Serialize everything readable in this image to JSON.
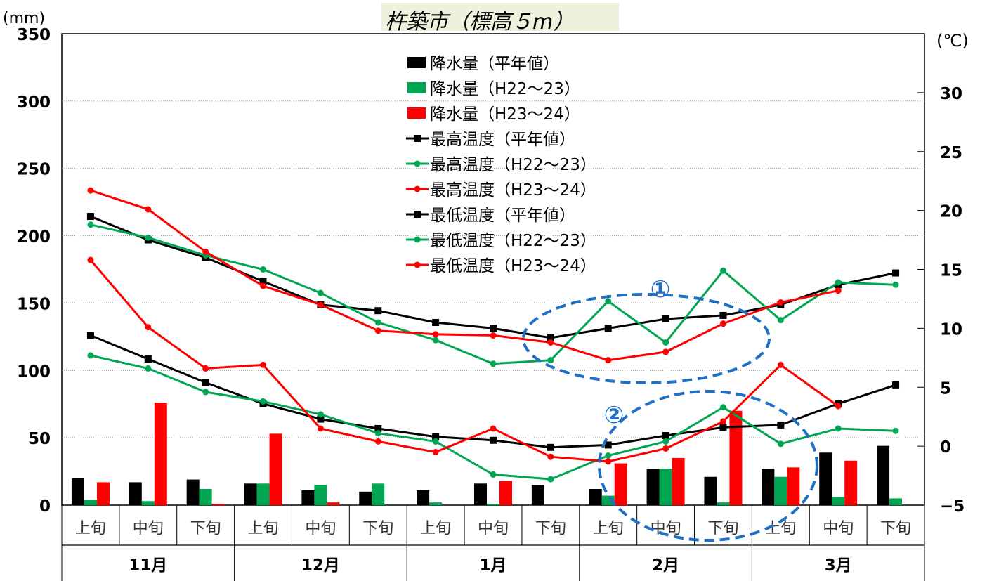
{
  "chart_data": {
    "type": "bar+line",
    "title": "杵築市（標高５m）",
    "y_left_unit": "(mm)",
    "y_right_unit": "(℃)",
    "ylim_left": [
      0,
      350
    ],
    "ylim_right": [
      -5,
      35
    ],
    "yticks_left": [
      "0",
      "50",
      "100",
      "150",
      "200",
      "250",
      "300",
      "350"
    ],
    "yticks_right": [
      "−5",
      "0",
      "5",
      "10",
      "15",
      "20",
      "25",
      "30"
    ],
    "yticks_right_values": [
      -5,
      0,
      5,
      10,
      15,
      20,
      25,
      30
    ],
    "categories": [
      "上旬",
      "中旬",
      "下旬",
      "上旬",
      "中旬",
      "下旬",
      "上旬",
      "中旬",
      "下旬",
      "上旬",
      "中旬",
      "下旬",
      "上旬",
      "中旬",
      "下旬"
    ],
    "months": [
      "11月",
      "12月",
      "1月",
      "2月",
      "3月"
    ],
    "bar_series": [
      {
        "name": "降水量（平年値）",
        "color": "#000000",
        "values": [
          20,
          17,
          19,
          16,
          11,
          10,
          11,
          16,
          15,
          12,
          27,
          21,
          27,
          39,
          44
        ]
      },
      {
        "name": "降水量（H22～23）",
        "color": "#00a651",
        "values": [
          4,
          3,
          12,
          16,
          15,
          16,
          2,
          1,
          0,
          7,
          27,
          2,
          21,
          6,
          5
        ]
      },
      {
        "name": "降水量（H23～24）",
        "color": "#ff0000",
        "values": [
          17,
          76,
          1,
          53,
          2,
          0,
          0,
          18,
          0,
          31,
          35,
          70,
          28,
          33,
          0
        ]
      }
    ],
    "line_series": [
      {
        "name": "最高温度（平年値）",
        "color": "#000000",
        "values": [
          19.5,
          17.5,
          16.0,
          14.0,
          12.0,
          11.5,
          10.5,
          10.0,
          9.2,
          10.0,
          10.8,
          11.1,
          12.0,
          13.7,
          14.7
        ]
      },
      {
        "name": "最高温度（H22～23）",
        "color": "#00a651",
        "values": [
          18.8,
          17.7,
          16.2,
          15.0,
          13.0,
          10.5,
          9.0,
          7.0,
          7.3,
          12.3,
          8.8,
          14.9,
          10.7,
          13.9,
          13.7
        ]
      },
      {
        "name": "最高温度（H23～24）",
        "color": "#ff0000",
        "values": [
          21.7,
          20.1,
          16.5,
          13.6,
          12.0,
          9.8,
          9.5,
          9.4,
          8.8,
          7.3,
          8.0,
          10.4,
          12.2,
          13.2,
          null
        ]
      },
      {
        "name": "最低温度（平年値）",
        "color": "#000000",
        "values": [
          9.4,
          7.4,
          5.4,
          3.6,
          2.3,
          1.5,
          0.8,
          0.5,
          -0.1,
          0.1,
          0.9,
          1.6,
          1.8,
          3.6,
          5.2
        ]
      },
      {
        "name": "最低温度（H22～23）",
        "color": "#00a651",
        "values": [
          7.7,
          6.6,
          4.6,
          3.8,
          2.7,
          1.1,
          0.4,
          -2.4,
          -2.8,
          -0.8,
          0.4,
          3.3,
          0.2,
          1.5,
          1.3
        ]
      },
      {
        "name": "最低温度（H23～24）",
        "color": "#ff0000",
        "values": [
          15.8,
          10.1,
          6.6,
          6.9,
          1.5,
          0.4,
          -0.5,
          1.5,
          -0.9,
          -1.3,
          -0.2,
          2.1,
          6.9,
          3.4,
          null
        ]
      }
    ],
    "annotations": [
      {
        "label": "①"
      },
      {
        "label": "②"
      }
    ],
    "grid": true,
    "legend_position": "top-center"
  }
}
